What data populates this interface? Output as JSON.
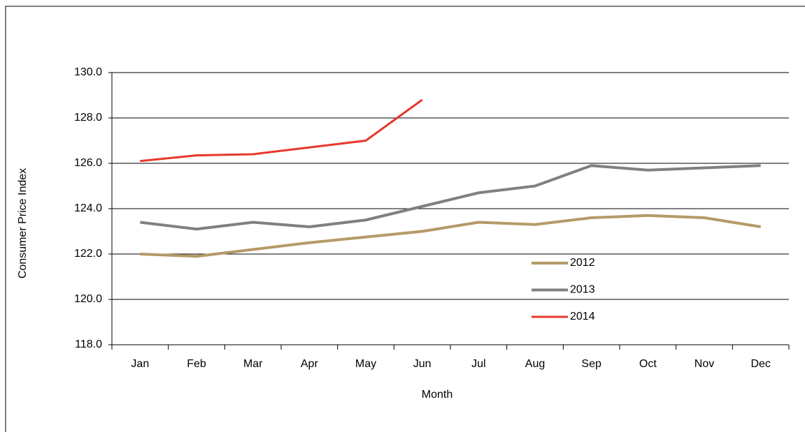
{
  "chart_data": {
    "type": "line",
    "x_label": "Month",
    "y_label": "Consumer Price Index",
    "categories": [
      "Jan",
      "Feb",
      "Mar",
      "Apr",
      "May",
      "Jun",
      "Jul",
      "Aug",
      "Sep",
      "Oct",
      "Nov",
      "Dec"
    ],
    "series": [
      {
        "name": "2012",
        "color": "#b59a67",
        "values": [
          122.0,
          121.9,
          122.2,
          122.5,
          122.75,
          123.0,
          123.4,
          123.3,
          123.6,
          123.7,
          123.6,
          123.2
        ]
      },
      {
        "name": "2013",
        "color": "#808080",
        "values": [
          123.4,
          123.1,
          123.4,
          123.2,
          123.5,
          124.1,
          124.7,
          125.0,
          125.9,
          125.7,
          125.8,
          125.9
        ]
      },
      {
        "name": "2014",
        "color": "#e8372c",
        "values": [
          126.1,
          126.35,
          126.4,
          126.7,
          127.0,
          128.8,
          null,
          null,
          null,
          null,
          null,
          null
        ]
      }
    ],
    "ylim": [
      118,
      130
    ],
    "yticks": [
      {
        "value": 118,
        "label": "118.0"
      },
      {
        "value": 120,
        "label": "120.0"
      },
      {
        "value": 122,
        "label": "122.0"
      },
      {
        "value": 124,
        "label": "124.0"
      },
      {
        "value": 126,
        "label": "126.0"
      },
      {
        "value": 128,
        "label": "128.0"
      },
      {
        "value": 130,
        "label": "130.0"
      }
    ],
    "grid": true
  }
}
